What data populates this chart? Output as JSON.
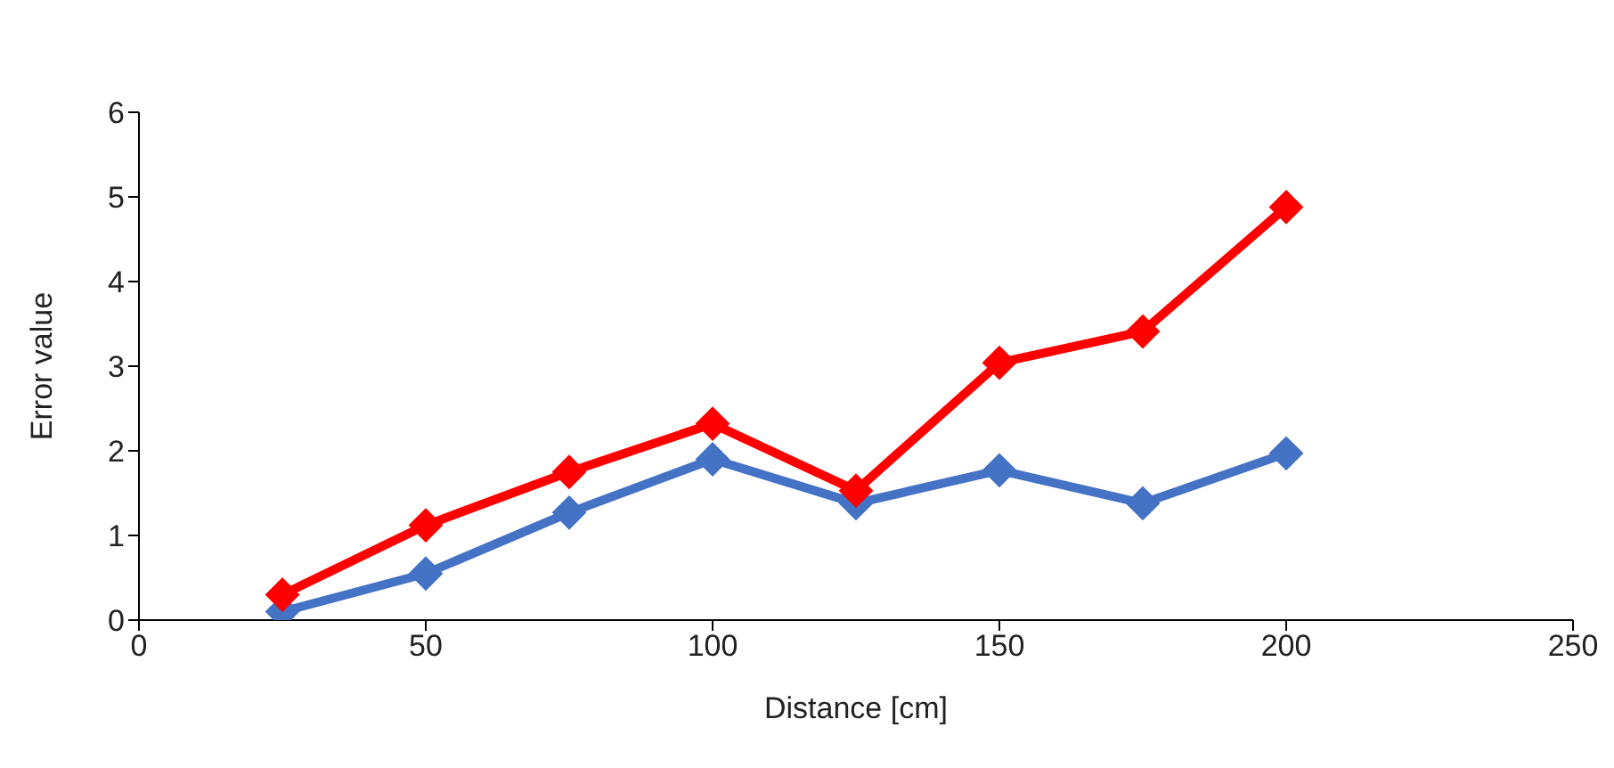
{
  "chart_data": {
    "type": "line",
    "xlabel": "Distance [cm]",
    "ylabel": "Error value",
    "x": [
      25,
      50,
      75,
      100,
      125,
      150,
      175,
      200
    ],
    "series": [
      {
        "color": "#4472c4",
        "values": [
          0.1,
          0.55,
          1.27,
          1.9,
          1.38,
          1.77,
          1.38,
          1.97
        ]
      },
      {
        "color": "#ff0000",
        "values": [
          0.3,
          1.12,
          1.75,
          2.32,
          1.53,
          3.04,
          3.41,
          4.88
        ]
      }
    ],
    "xlim": [
      0,
      250
    ],
    "xticks": [
      0,
      50,
      100,
      150,
      200,
      250
    ],
    "ylim": [
      0,
      6
    ],
    "yticks": [
      0,
      1,
      2,
      3,
      4,
      5,
      6
    ],
    "grid": false,
    "legend": false,
    "marker": "diamond",
    "line_style": "solid"
  }
}
